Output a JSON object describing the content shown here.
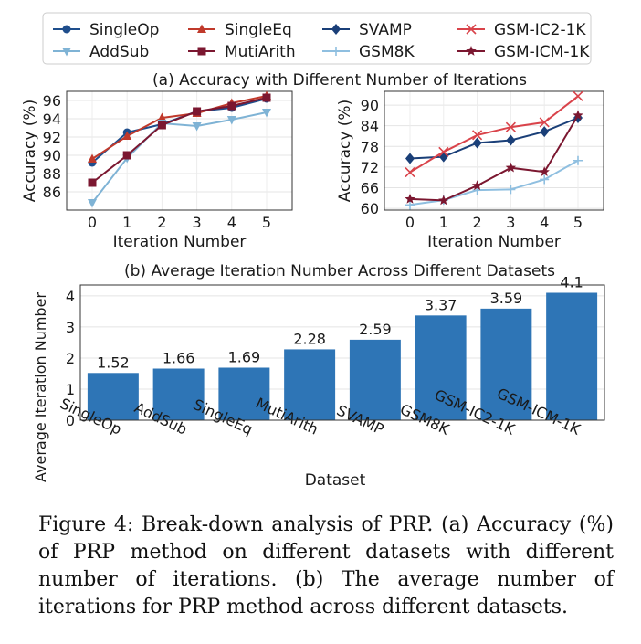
{
  "figure": {
    "legend": [
      {
        "label": "SingleOp",
        "color": "#1f4e8c",
        "marker": "circle",
        "dash": false
      },
      {
        "label": "SingleEq",
        "color": "#c0392b",
        "marker": "triangle-up",
        "dash": false
      },
      {
        "label": "SVAMP",
        "color": "#1a3f78",
        "marker": "diamond",
        "dash": false
      },
      {
        "label": "GSM-IC2-1K",
        "color": "#d9434a",
        "marker": "x",
        "dash": false
      },
      {
        "label": "AddSub",
        "color": "#7fb3d5",
        "marker": "triangle-down",
        "dash": false
      },
      {
        "label": "MutiArith",
        "color": "#7b1730",
        "marker": "square",
        "dash": false
      },
      {
        "label": "GSM8K",
        "color": "#8fbfe0",
        "marker": "plus",
        "dash": false
      },
      {
        "label": "GSM-ICM-1K",
        "color": "#7b1730",
        "marker": "star",
        "dash": false
      }
    ],
    "caption": "Figure 4: Break-down analysis of PRP. (a) Accuracy (%) of PRP method on different datasets with different number of iterations. (b) The average number of iterations for PRP method across different datasets."
  },
  "chart_data": [
    {
      "type": "line",
      "title": "(a) Accuracy with Different Number of Iterations",
      "xlabel": "Iteration Number",
      "ylabel": "Accuracy (%)",
      "x": [
        0,
        1,
        2,
        3,
        4,
        5
      ],
      "xticks": [
        "0",
        "1",
        "2",
        "3",
        "4",
        "5"
      ],
      "ylim": [
        84,
        97
      ],
      "yticks": [
        86,
        88,
        90,
        92,
        94,
        96
      ],
      "grid": true,
      "series": [
        {
          "name": "SingleOp",
          "color": "#1f4e8c",
          "marker": "circle",
          "values": [
            89.2,
            92.5,
            93.4,
            94.8,
            95.2,
            96.2
          ]
        },
        {
          "name": "SingleEq",
          "color": "#c0392b",
          "marker": "triangle-up",
          "values": [
            89.6,
            92.1,
            94.1,
            94.6,
            95.7,
            96.5
          ]
        },
        {
          "name": "AddSub",
          "color": "#7fb3d5",
          "marker": "triangle-down",
          "values": [
            84.8,
            89.7,
            93.5,
            93.2,
            93.9,
            94.7
          ]
        },
        {
          "name": "MutiArith",
          "color": "#7b1730",
          "marker": "square",
          "values": [
            87.0,
            90.0,
            93.3,
            94.8,
            95.4,
            96.3
          ]
        }
      ]
    },
    {
      "type": "line",
      "xlabel": "Iteration Number",
      "ylabel": "Accuracy (%)",
      "x": [
        0,
        1,
        2,
        3,
        4,
        5
      ],
      "xticks": [
        "0",
        "1",
        "2",
        "3",
        "4",
        "5"
      ],
      "ylim": [
        59.5,
        94
      ],
      "yticks": [
        60,
        66,
        72,
        78,
        84,
        90
      ],
      "grid": true,
      "series": [
        {
          "name": "SVAMP",
          "color": "#1a3f78",
          "marker": "diamond",
          "values": [
            74.5,
            75.0,
            79.0,
            79.8,
            82.3,
            86.3
          ]
        },
        {
          "name": "GSM-IC2-1K",
          "color": "#d9434a",
          "marker": "x",
          "values": [
            70.5,
            76.4,
            81.3,
            83.6,
            85.0,
            92.6
          ]
        },
        {
          "name": "GSM8K",
          "color": "#8fbfe0",
          "marker": "plus",
          "values": [
            61.0,
            62.4,
            65.3,
            65.5,
            68.4,
            73.9
          ]
        },
        {
          "name": "GSM-ICM-1K",
          "color": "#7b1730",
          "marker": "star",
          "values": [
            62.7,
            62.3,
            66.6,
            71.8,
            70.6,
            87.0
          ]
        }
      ]
    },
    {
      "type": "bar",
      "title": "(b) Average Iteration Number Across Different Datasets",
      "xlabel": "Dataset",
      "ylabel": "Average Iteration Number",
      "categories": [
        "SingleOp",
        "AddSub",
        "SingleEq",
        "MutiArith",
        "SVAMP",
        "GSM8K",
        "GSM-IC2-1K",
        "GSM-ICM-1K"
      ],
      "values": [
        1.52,
        1.66,
        1.69,
        2.28,
        2.59,
        3.37,
        3.59,
        4.1
      ],
      "value_labels": [
        "1.52",
        "1.66",
        "1.69",
        "2.28",
        "2.59",
        "3.37",
        "3.59",
        "4.1"
      ],
      "ylim": [
        0,
        4.35
      ],
      "yticks": [
        0,
        1,
        2,
        3,
        4
      ],
      "bar_color": "#2e75b6",
      "grid": true
    }
  ]
}
